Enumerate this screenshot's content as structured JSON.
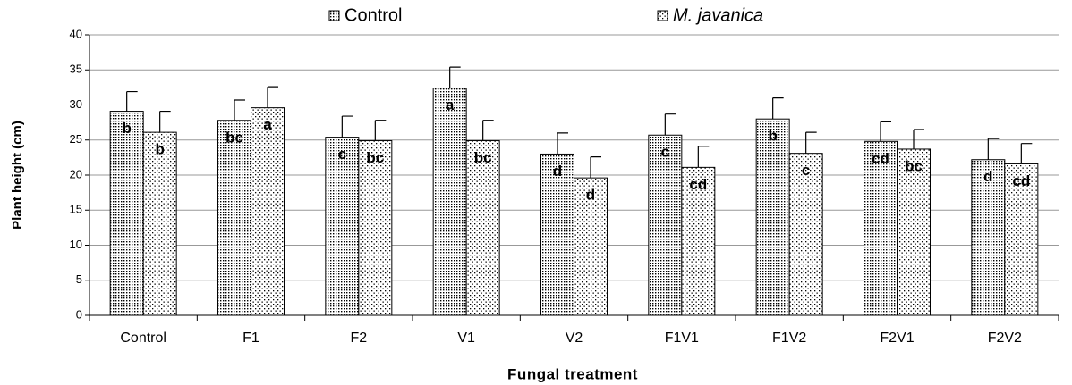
{
  "chart_data": {
    "type": "bar",
    "x_label": "Fungal treatment",
    "y_label": "Plant height (cm)",
    "categories": [
      "Control",
      "F1",
      "F2",
      "V1",
      "V2",
      "F1V1",
      "F1V2",
      "F2V1",
      "F2V2"
    ],
    "series": [
      {
        "name": "Control",
        "color": "#000000",
        "pattern": "dense",
        "values": [
          29.1,
          27.8,
          25.4,
          32.4,
          23.0,
          25.7,
          28.0,
          24.8,
          22.2
        ],
        "errors": [
          2.8,
          2.9,
          3.0,
          3.0,
          3.0,
          3.0,
          3.0,
          2.8,
          3.0
        ],
        "letters": [
          "b",
          "bc",
          "c",
          "a",
          "d",
          "c",
          "b",
          "cd",
          "d"
        ]
      },
      {
        "name": "M. javanica",
        "color": "#000000",
        "pattern": "sparse",
        "values": [
          26.1,
          29.6,
          24.9,
          24.9,
          19.6,
          21.1,
          23.1,
          23.7,
          21.6
        ],
        "errors": [
          3.0,
          3.0,
          2.9,
          2.9,
          3.0,
          3.0,
          3.0,
          2.8,
          2.9
        ],
        "letters": [
          "b",
          "a",
          "bc",
          "bc",
          "d",
          "cd",
          "c",
          "bc",
          "cd"
        ]
      }
    ],
    "ylim": [
      0,
      40
    ],
    "yticks": [
      0,
      5,
      10,
      15,
      20,
      25,
      30,
      35,
      40
    ],
    "grid": true,
    "legend": "top"
  }
}
